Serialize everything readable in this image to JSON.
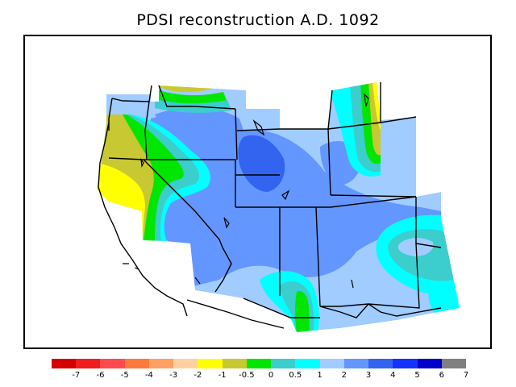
{
  "title": "PDSI reconstruction A.D. 1092",
  "legend": {
    "colors": [
      "#d40000",
      "#f01e1e",
      "#ff4b4b",
      "#ff7a3c",
      "#ffa064",
      "#ffd0a0",
      "#ffff00",
      "#c8c832",
      "#00e600",
      "#3ccdcd",
      "#00ffff",
      "#a0ccff",
      "#6496ff",
      "#3264f0",
      "#1432ff",
      "#0000c8",
      "#808080"
    ],
    "labels": [
      "-7",
      "-6",
      "-5",
      "-4",
      "-3",
      "-2",
      "-1",
      "-0.5",
      "0",
      "0.5",
      "1",
      "2",
      "3",
      "4",
      "5",
      "6",
      "7"
    ]
  },
  "map": {
    "region": "US Southwest",
    "palette": {
      "yellow": "#ffff00",
      "olive": "#c8c832",
      "green": "#00e600",
      "teal": "#3ccdcd",
      "cyan": "#00ffff",
      "light_blue": "#a0ccff",
      "mid_blue": "#6496ff",
      "deep_blue": "#3264f0"
    }
  }
}
